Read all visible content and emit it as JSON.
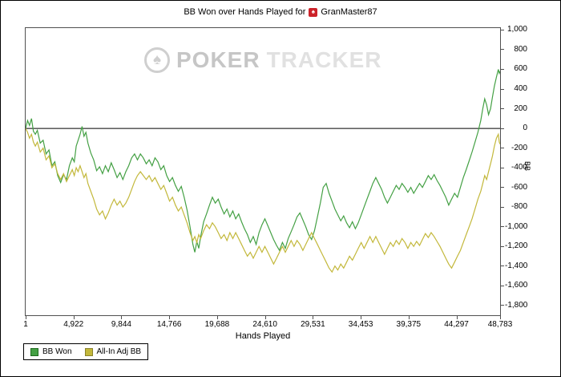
{
  "title": {
    "prefix": "BB Won over Hands Played for",
    "player": "GranMaster87",
    "logo_glyph": "♠"
  },
  "watermark": {
    "spade": "♠",
    "word1": "POKER",
    "word2": "TRACKER"
  },
  "axes": {
    "x_label": "Hands Played",
    "y_label": "BB",
    "x_ticks": [
      {
        "v": 1,
        "label": "1"
      },
      {
        "v": 4922,
        "label": "4,922"
      },
      {
        "v": 9844,
        "label": "9,844"
      },
      {
        "v": 14766,
        "label": "14,766"
      },
      {
        "v": 19688,
        "label": "19,688"
      },
      {
        "v": 24610,
        "label": "24,610"
      },
      {
        "v": 29531,
        "label": "29,531"
      },
      {
        "v": 34453,
        "label": "34,453"
      },
      {
        "v": 39375,
        "label": "39,375"
      },
      {
        "v": 44297,
        "label": "44,297"
      },
      {
        "v": 48783,
        "label": "48,783"
      }
    ],
    "y_ticks": [
      {
        "v": 1000,
        "label": "1,000"
      },
      {
        "v": 800,
        "label": "800"
      },
      {
        "v": 600,
        "label": "600"
      },
      {
        "v": 400,
        "label": "400"
      },
      {
        "v": 200,
        "label": "200"
      },
      {
        "v": 0,
        "label": "0"
      },
      {
        "v": -200,
        "label": "-200"
      },
      {
        "v": -400,
        "label": "-400"
      },
      {
        "v": -600,
        "label": "-600"
      },
      {
        "v": -800,
        "label": "-800"
      },
      {
        "v": -1000,
        "label": "-1,000"
      },
      {
        "v": -1200,
        "label": "-1,200"
      },
      {
        "v": -1400,
        "label": "-1,400"
      },
      {
        "v": -1600,
        "label": "-1,600"
      },
      {
        "v": -1800,
        "label": "-1,800"
      }
    ]
  },
  "legend": [
    {
      "label": "BB Won",
      "color": "#44a044",
      "border": "#1e6b1e",
      "swatch_icon": "bb-won-swatch"
    },
    {
      "label": "All-In Adj BB",
      "color": "#c3b83b",
      "border": "#8a822a",
      "swatch_icon": "all-in-adj-bb-swatch"
    }
  ],
  "chart_data": {
    "type": "line",
    "title": "BB Won over Hands Played for GranMaster87",
    "xlabel": "Hands Played",
    "ylabel": "BB",
    "xlim": [
      1,
      48783
    ],
    "ylim": [
      -1900,
      1020
    ],
    "grid": false,
    "zero_line": true,
    "legend_position": "bottom-left",
    "x": [
      1,
      200,
      400,
      600,
      800,
      1000,
      1200,
      1500,
      1800,
      2100,
      2400,
      2700,
      3000,
      3300,
      3600,
      3900,
      4200,
      4500,
      4800,
      5000,
      5200,
      5400,
      5600,
      5800,
      6000,
      6200,
      6400,
      6700,
      7000,
      7300,
      7600,
      7900,
      8200,
      8500,
      8800,
      9100,
      9400,
      9700,
      10000,
      10300,
      10600,
      10900,
      11200,
      11500,
      11800,
      12100,
      12400,
      12700,
      13000,
      13300,
      13600,
      13900,
      14200,
      14500,
      14800,
      15100,
      15400,
      15700,
      16000,
      16300,
      16600,
      16900,
      17200,
      17400,
      17600,
      17800,
      18000,
      18300,
      18600,
      18900,
      19200,
      19500,
      19800,
      20100,
      20400,
      20700,
      21000,
      21300,
      21600,
      21900,
      22200,
      22500,
      22800,
      23100,
      23400,
      23700,
      24000,
      24300,
      24600,
      24900,
      25200,
      25500,
      25800,
      26100,
      26400,
      26700,
      27000,
      27300,
      27600,
      27900,
      28200,
      28500,
      28800,
      29100,
      29400,
      29700,
      30000,
      30300,
      30600,
      30900,
      31200,
      31500,
      31800,
      32100,
      32400,
      32700,
      33000,
      33300,
      33600,
      33900,
      34200,
      34500,
      34800,
      35100,
      35400,
      35700,
      36000,
      36300,
      36600,
      36900,
      37200,
      37500,
      37800,
      38100,
      38400,
      38700,
      39000,
      39300,
      39600,
      39900,
      40200,
      40500,
      40800,
      41100,
      41400,
      41700,
      42000,
      42300,
      42600,
      42900,
      43200,
      43500,
      43800,
      44100,
      44400,
      44700,
      45000,
      45300,
      45600,
      45900,
      46200,
      46500,
      46800,
      47000,
      47200,
      47400,
      47600,
      47800,
      48000,
      48200,
      48400,
      48600,
      48700,
      48783
    ],
    "series": [
      {
        "name": "BB Won",
        "color": "#44a044",
        "values": [
          0,
          80,
          30,
          100,
          -30,
          -60,
          -20,
          -150,
          -120,
          -260,
          -220,
          -380,
          -340,
          -480,
          -550,
          -470,
          -520,
          -380,
          -300,
          -340,
          -180,
          -120,
          -60,
          20,
          -80,
          -40,
          -150,
          -250,
          -320,
          -430,
          -390,
          -460,
          -380,
          -440,
          -350,
          -420,
          -500,
          -450,
          -520,
          -440,
          -380,
          -300,
          -260,
          -320,
          -260,
          -300,
          -360,
          -320,
          -380,
          -300,
          -340,
          -420,
          -380,
          -480,
          -540,
          -500,
          -580,
          -640,
          -590,
          -700,
          -830,
          -1000,
          -1180,
          -1260,
          -1150,
          -1220,
          -1100,
          -950,
          -870,
          -780,
          -700,
          -760,
          -720,
          -800,
          -870,
          -820,
          -900,
          -840,
          -920,
          -870,
          -950,
          -1020,
          -1080,
          -1160,
          -1100,
          -1180,
          -1060,
          -980,
          -920,
          -990,
          -1060,
          -1130,
          -1190,
          -1240,
          -1160,
          -1220,
          -1120,
          -1050,
          -980,
          -900,
          -860,
          -930,
          -1000,
          -1080,
          -1130,
          -1040,
          -900,
          -760,
          -600,
          -560,
          -660,
          -740,
          -820,
          -880,
          -940,
          -890,
          -960,
          -1010,
          -950,
          -1020,
          -960,
          -880,
          -800,
          -720,
          -640,
          -560,
          -500,
          -560,
          -620,
          -700,
          -760,
          -700,
          -640,
          -580,
          -620,
          -560,
          -600,
          -650,
          -600,
          -660,
          -610,
          -560,
          -600,
          -540,
          -480,
          -520,
          -470,
          -530,
          -580,
          -640,
          -700,
          -780,
          -720,
          -660,
          -700,
          -600,
          -500,
          -420,
          -330,
          -240,
          -140,
          -40,
          80,
          200,
          300,
          240,
          140,
          200,
          320,
          430,
          520,
          600,
          560,
          580
        ]
      },
      {
        "name": "All-In Adj BB",
        "color": "#c3b83b",
        "values": [
          0,
          -40,
          -100,
          -60,
          -140,
          -180,
          -140,
          -240,
          -200,
          -320,
          -280,
          -400,
          -360,
          -460,
          -520,
          -460,
          -540,
          -480,
          -420,
          -480,
          -400,
          -440,
          -380,
          -440,
          -500,
          -460,
          -560,
          -640,
          -720,
          -820,
          -880,
          -840,
          -920,
          -860,
          -780,
          -720,
          -780,
          -740,
          -800,
          -760,
          -700,
          -620,
          -540,
          -480,
          -440,
          -480,
          -520,
          -480,
          -540,
          -500,
          -560,
          -620,
          -580,
          -660,
          -740,
          -700,
          -780,
          -840,
          -800,
          -880,
          -960,
          -1060,
          -1140,
          -1100,
          -1160,
          -1080,
          -1120,
          -1040,
          -980,
          -1020,
          -960,
          -1000,
          -1060,
          -1120,
          -1080,
          -1140,
          -1060,
          -1120,
          -1060,
          -1120,
          -1180,
          -1240,
          -1300,
          -1260,
          -1320,
          -1260,
          -1200,
          -1260,
          -1200,
          -1260,
          -1320,
          -1380,
          -1320,
          -1260,
          -1200,
          -1260,
          -1200,
          -1140,
          -1200,
          -1140,
          -1180,
          -1240,
          -1180,
          -1120,
          -1060,
          -1120,
          -1180,
          -1240,
          -1300,
          -1360,
          -1420,
          -1460,
          -1400,
          -1440,
          -1380,
          -1420,
          -1360,
          -1300,
          -1340,
          -1280,
          -1220,
          -1160,
          -1220,
          -1160,
          -1100,
          -1160,
          -1100,
          -1160,
          -1220,
          -1280,
          -1220,
          -1160,
          -1200,
          -1140,
          -1180,
          -1120,
          -1160,
          -1220,
          -1160,
          -1200,
          -1150,
          -1190,
          -1130,
          -1070,
          -1110,
          -1060,
          -1100,
          -1150,
          -1200,
          -1260,
          -1320,
          -1380,
          -1420,
          -1360,
          -1300,
          -1240,
          -1160,
          -1080,
          -1000,
          -920,
          -820,
          -720,
          -640,
          -560,
          -480,
          -520,
          -440,
          -360,
          -280,
          -180,
          -100,
          -60,
          -140,
          -160
        ]
      }
    ]
  }
}
